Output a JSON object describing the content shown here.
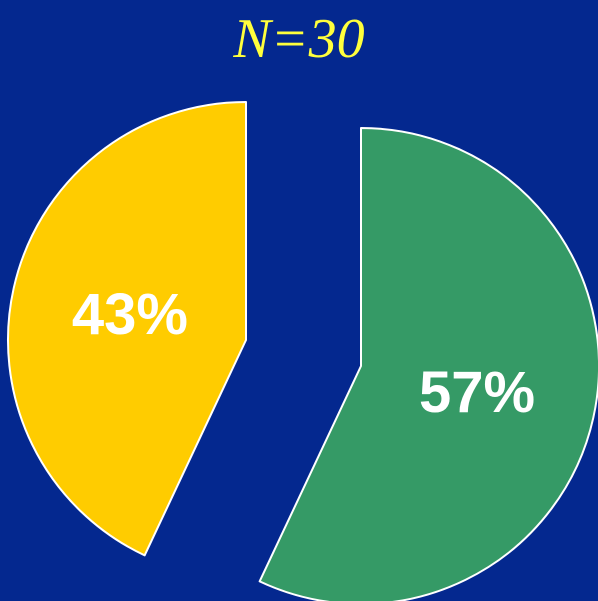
{
  "background_color": "#04288f",
  "chart_data": {
    "type": "pie",
    "title": "N=30",
    "title_color": "#ffff3c",
    "exploded": true,
    "slices": [
      {
        "label": "57%",
        "value": 57,
        "color": "#359a66"
      },
      {
        "label": "43%",
        "value": 43,
        "color": "#ffcc00"
      }
    ],
    "slice_outline_color": "#ffffff",
    "label_color": "#ffffff"
  }
}
